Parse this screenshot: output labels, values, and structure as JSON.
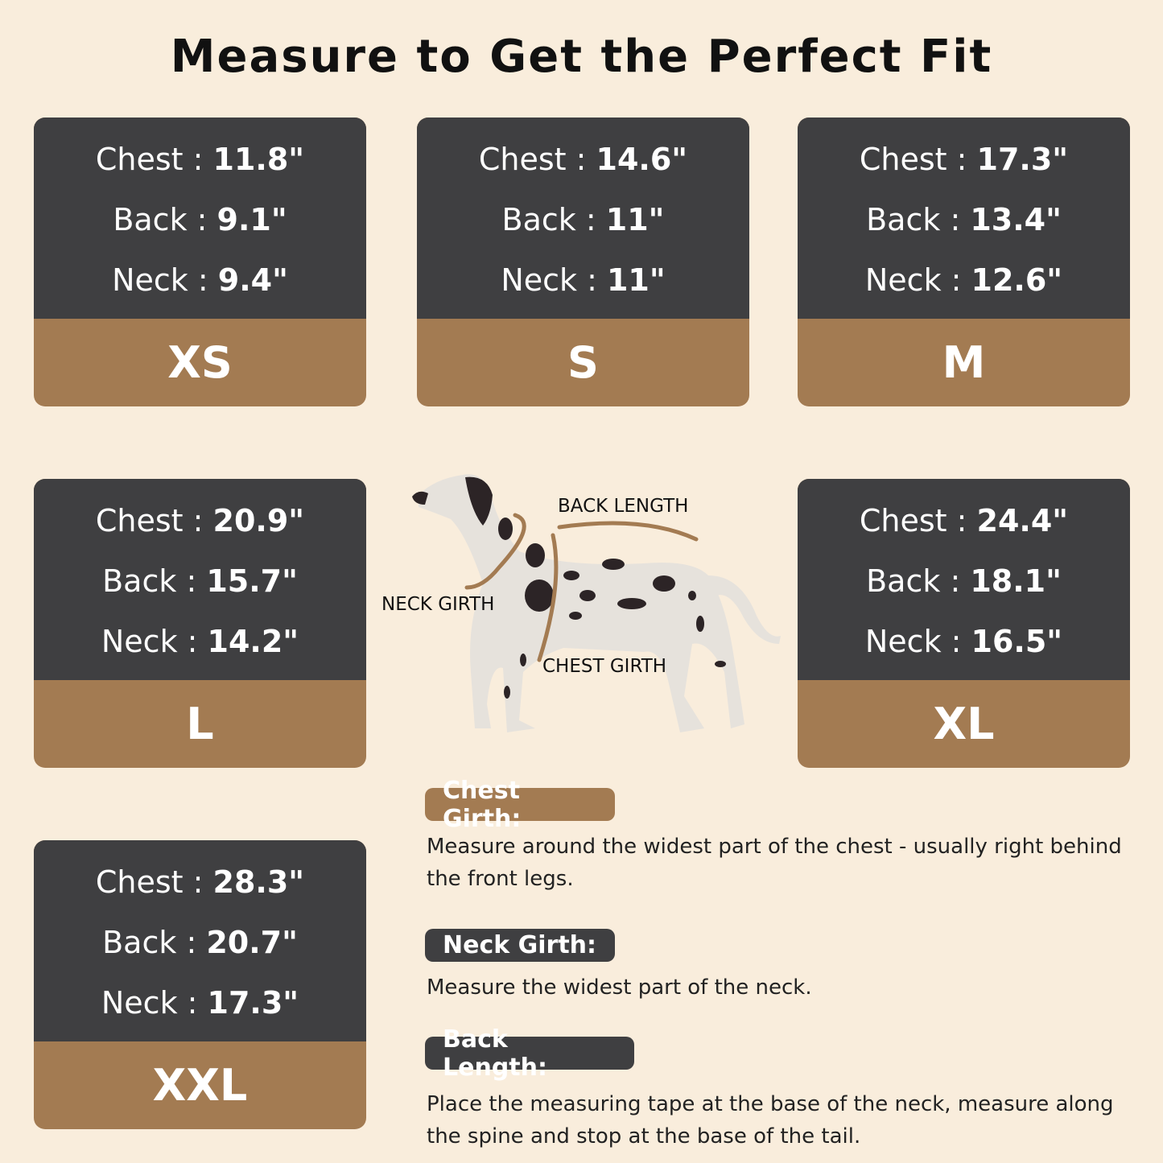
{
  "title": "Measure to Get the Perfect Fit",
  "colors": {
    "background": "#f9eddc",
    "card_dark": "#3f3f41",
    "card_brown": "#a37b52"
  },
  "sizes": [
    {
      "size": "XS",
      "chest": "11.8\"",
      "back": "9.1\"",
      "neck": "9.4\""
    },
    {
      "size": "S",
      "chest": "14.6\"",
      "back": "11\"",
      "neck": "11\""
    },
    {
      "size": "M",
      "chest": "17.3\"",
      "back": "13.4\"",
      "neck": "12.6\""
    },
    {
      "size": "L",
      "chest": "20.9\"",
      "back": "15.7\"",
      "neck": "14.2\""
    },
    {
      "size": "XL",
      "chest": "24.4\"",
      "back": "18.1\"",
      "neck": "16.5\""
    },
    {
      "size": "XXL",
      "chest": "28.3\"",
      "back": "20.7\"",
      "neck": "17.3\""
    }
  ],
  "labels": {
    "chest": "Chest : ",
    "back": "Back : ",
    "neck": "Neck : "
  },
  "diagram": {
    "back_length": "BACK LENGTH",
    "neck_girth": "NECK GIRTH",
    "chest_girth": "CHEST GIRTH"
  },
  "guide": [
    {
      "title": "Chest Girth:",
      "text": "Measure around the widest part of the chest - usually right behind the front legs."
    },
    {
      "title": "Neck Girth:",
      "text": "Measure the widest part of the neck."
    },
    {
      "title": "Back Length:",
      "text": "Place the measuring tape at the base of the neck, measure along the spine and stop at the base of the tail."
    }
  ]
}
